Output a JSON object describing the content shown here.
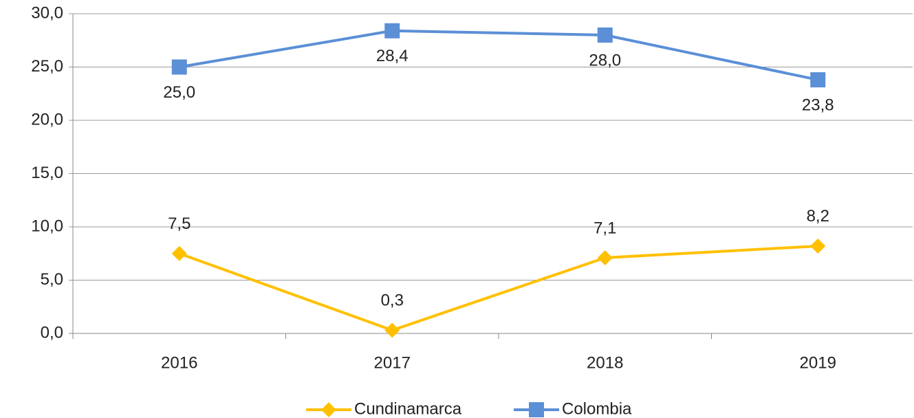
{
  "chart_data": {
    "type": "line",
    "categories": [
      "2016",
      "2017",
      "2018",
      "2019"
    ],
    "series": [
      {
        "name": "Cundinamarca",
        "color": "#ffc000",
        "values": [
          7.5,
          0.3,
          7.1,
          8.2
        ],
        "value_labels": [
          "7,5",
          "0,3",
          "7,1",
          "8,2"
        ]
      },
      {
        "name": "Colombia",
        "color": "#5b8fd6",
        "values": [
          25.0,
          28.4,
          28.0,
          23.8
        ],
        "value_labels": [
          "25,0",
          "28,4",
          "28,0",
          "23,8"
        ]
      }
    ],
    "ylim": [
      0,
      30
    ],
    "yticks": [
      {
        "value": 0,
        "label": "0,0"
      },
      {
        "value": 5,
        "label": "5,0"
      },
      {
        "value": 10,
        "label": "10,0"
      },
      {
        "value": 15,
        "label": "15,0"
      },
      {
        "value": 20,
        "label": "20,0"
      },
      {
        "value": 25,
        "label": "25,0"
      },
      {
        "value": 30,
        "label": "30,0"
      }
    ],
    "grid": true,
    "legend": "bottom"
  }
}
